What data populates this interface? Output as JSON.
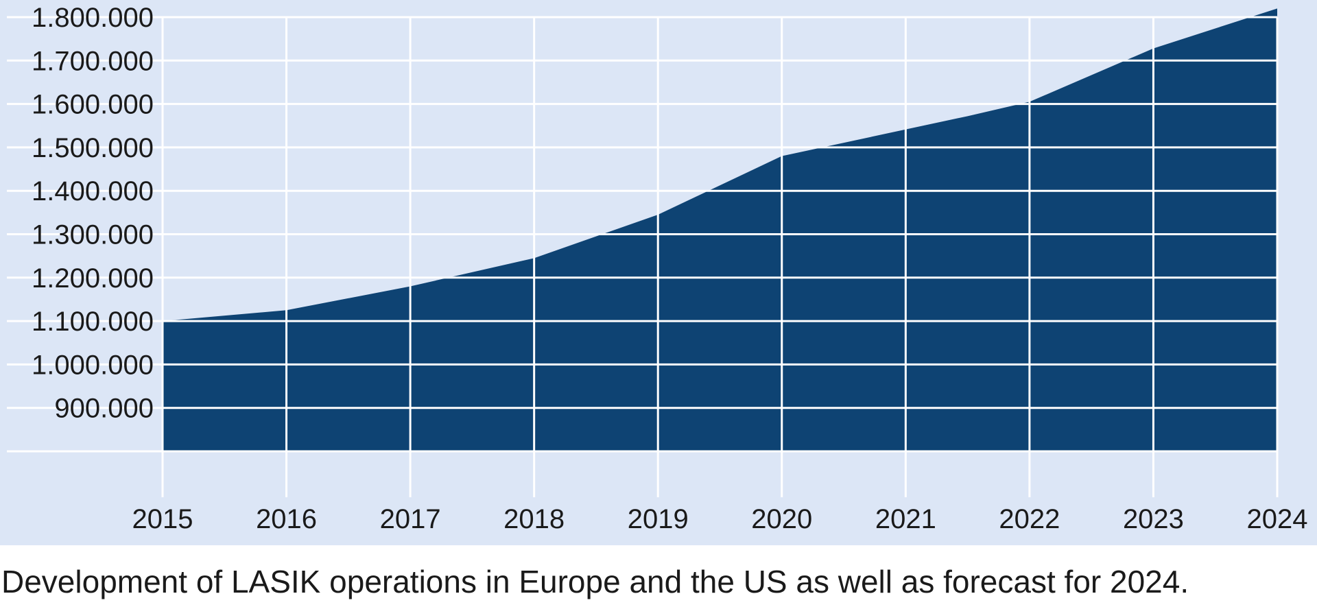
{
  "caption": "Development of LASIK operations in Europe and the US as well as forecast for 2024.",
  "colors": {
    "panel_background": "#dce6f6",
    "area_fill": "#0e4373",
    "grid": "#ffffff"
  },
  "chart_data": {
    "type": "area",
    "title": "",
    "xlabel": "",
    "ylabel": "",
    "xlim": [
      2015,
      2024
    ],
    "ylim": [
      800000,
      1800000
    ],
    "grid": true,
    "legend": "none",
    "x_ticks": [
      "2015",
      "2016",
      "2017",
      "2018",
      "2019",
      "2020",
      "2021",
      "2022",
      "2023",
      "2024"
    ],
    "y_ticks": [
      "900.000",
      "1.000.000",
      "1.100.000",
      "1.200.000",
      "1.300.000",
      "1.400.000",
      "1.500.000",
      "1.600.000",
      "1.700.000",
      "1.800.000"
    ],
    "y_tick_values": [
      900000,
      1000000,
      1100000,
      1200000,
      1300000,
      1400000,
      1500000,
      1600000,
      1700000,
      1800000
    ],
    "series": [
      {
        "x": [
          2015,
          2016,
          2017,
          2018,
          2019,
          2020,
          2021.5,
          2022,
          2023,
          2024
        ],
        "y": [
          1100000,
          1125000,
          1180000,
          1245000,
          1345000,
          1480000,
          1572000,
          1605000,
          1728000,
          1820000
        ]
      }
    ]
  }
}
